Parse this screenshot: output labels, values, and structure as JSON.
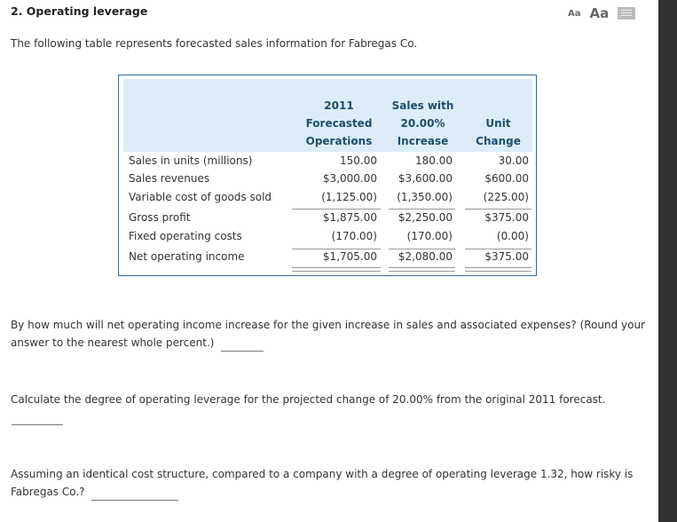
{
  "title": "2. Operating leverage",
  "toolbar": {
    "small_font": "Aa",
    "large_font": "Aa",
    "print_icon": "print-icon"
  },
  "intro": "The following table represents forecasted sales information for Fabregas Co.",
  "table": {
    "headers": [
      [
        "2011",
        "Forecasted",
        "Operations"
      ],
      [
        "Sales with",
        "20.00%",
        "Increase"
      ],
      [
        "Unit",
        "Change"
      ]
    ],
    "rows": [
      {
        "label": "Sales in units (millions)",
        "values": [
          "150.00",
          "180.00",
          "30.00"
        ]
      },
      {
        "label": "Sales revenues",
        "values": [
          "$3,000.00",
          "$3,600.00",
          "$600.00"
        ]
      },
      {
        "label": "Variable cost of goods sold",
        "values": [
          "(1,125.00)",
          "(1,350.00)",
          "(225.00)"
        ]
      },
      {
        "label": "Gross profit",
        "values": [
          "$1,875.00",
          "$2,250.00",
          "$375.00"
        ]
      },
      {
        "label": "Fixed operating costs",
        "values": [
          "(170.00)",
          "(170.00)",
          "(0.00)"
        ]
      },
      {
        "label": "Net operating income",
        "values": [
          "$1,705.00",
          "$2,080.00",
          "$375.00"
        ]
      }
    ]
  },
  "questions": [
    {
      "text": "By how much will net operating income increase for the given increase in sales and associated expenses? (Round your answer to the nearest whole percent.)"
    },
    {
      "text": "Calculate the degree of operating leverage for the projected change of 20.00% from the original 2011 forecast."
    },
    {
      "text": "Assuming an identical cost structure, compared to a company with a degree of operating leverage 1.32, how risky is Fabregas Co.?"
    }
  ]
}
